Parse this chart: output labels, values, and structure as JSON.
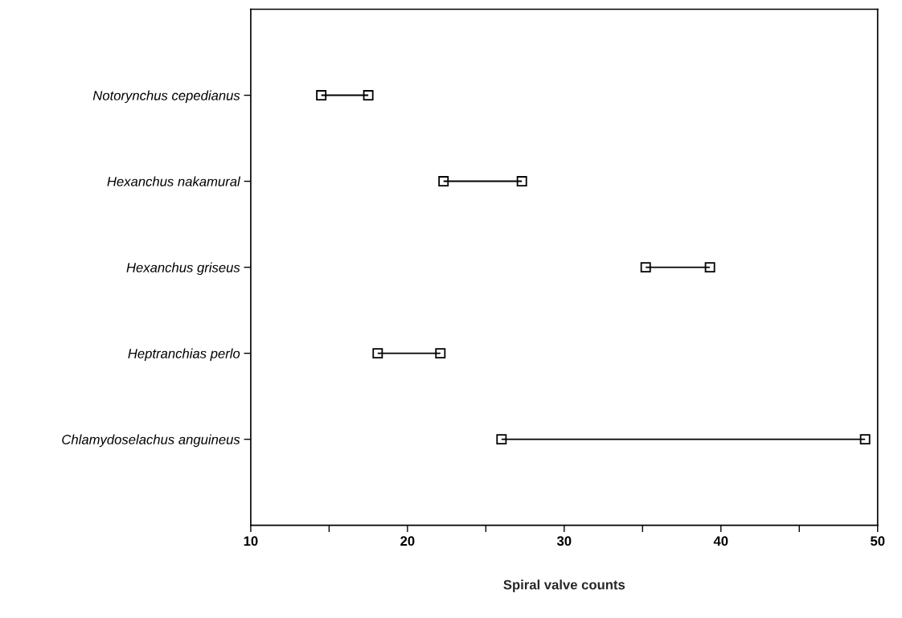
{
  "chart_data": {
    "type": "bar",
    "orientation": "horizontal",
    "marker": "square",
    "xlabel": "Spiral valve counts",
    "categories": [
      "Notorynchus cepedianus",
      "Hexanchus nakamural",
      "Hexanchus griseus",
      "Heptranchias perlo",
      "Chlamydoselachus anguineus"
    ],
    "base": [
      14.5,
      22.3,
      35.2,
      18.1,
      26.0
    ],
    "values": [
      3.0,
      5.0,
      4.1,
      4.0,
      23.2
    ],
    "color": "#000000",
    "xlim": [
      10,
      50
    ],
    "xticks": [
      10,
      {
        "value": 15,
        "label": null
      },
      20,
      {
        "value": 25,
        "label": null
      },
      30,
      {
        "value": 35,
        "label": null
      },
      40,
      {
        "value": 45,
        "label": null
      },
      50
    ],
    "grid": false,
    "legend": false
  }
}
